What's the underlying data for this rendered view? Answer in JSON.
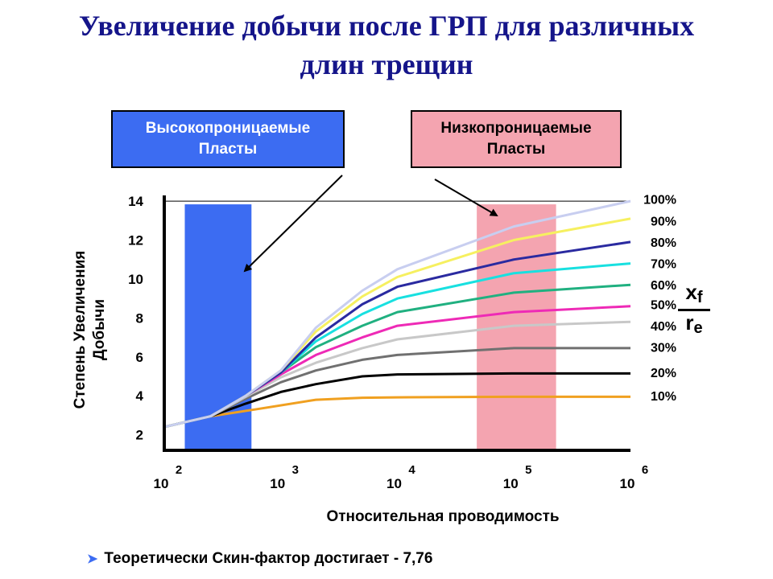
{
  "title": "Увеличение добычи после ГРП для различных\nдлин трещин",
  "box_high": {
    "label": "Высокопроницаемые\nПласты",
    "color": "#3c6cf2"
  },
  "box_low": {
    "label": "Низкопроницаемые\nПласты",
    "color": "#f4a4b0"
  },
  "note": {
    "bullet": "➤",
    "text": "Теоретически Скин-фактор достигает  - 7,76"
  },
  "fraction": {
    "num": "x",
    "num_sub": "f",
    "den": "r",
    "den_sub": "e"
  },
  "chart_data": {
    "type": "line",
    "title": "",
    "xlabel": "Относительная проводимость",
    "ylabel": "Степень Увеличения\nДобычи",
    "x_scale": "log",
    "xlim": [
      100,
      1000000
    ],
    "ylim": [
      1.2,
      14.5
    ],
    "y_ticks": [
      2,
      4,
      6,
      8,
      10,
      12,
      14
    ],
    "x_ticks": [
      {
        "value": 100,
        "base": "10",
        "exp": "2"
      },
      {
        "value": 1000,
        "base": "10",
        "exp": "3"
      },
      {
        "value": 10000,
        "base": "10",
        "exp": "4"
      },
      {
        "value": 100000,
        "base": "10",
        "exp": "5"
      },
      {
        "value": 1000000,
        "base": "10",
        "exp": "6"
      }
    ],
    "hlines": [
      14
    ],
    "bands": [
      {
        "name": "high-permeability",
        "x": [
          150,
          560
        ],
        "color": "#3c6cf2"
      },
      {
        "name": "low-permeability",
        "x": [
          48000,
          230000
        ],
        "color": "#f4a4b0"
      }
    ],
    "series": [
      {
        "name": "10%",
        "color": "#f0a020",
        "x": [
          100,
          250,
          600,
          2000,
          5000,
          10000,
          100000,
          1000000
        ],
        "y": [
          2.4,
          2.95,
          3.3,
          3.8,
          3.9,
          3.92,
          3.95,
          3.95
        ]
      },
      {
        "name": "20%",
        "color": "#000000",
        "x": [
          100,
          250,
          500,
          1000,
          2000,
          5000,
          10000,
          100000,
          1000000
        ],
        "y": [
          2.4,
          2.95,
          3.6,
          4.2,
          4.6,
          5.0,
          5.1,
          5.15,
          5.15
        ]
      },
      {
        "name": "30%",
        "color": "#707070",
        "x": [
          100,
          250,
          500,
          1000,
          2000,
          5000,
          10000,
          100000,
          1000000
        ],
        "y": [
          2.4,
          2.95,
          3.85,
          4.7,
          5.3,
          5.85,
          6.1,
          6.45,
          6.45
        ]
      },
      {
        "name": "40%",
        "color": "#c8c8c8",
        "x": [
          100,
          250,
          500,
          1000,
          2000,
          5000,
          10000,
          100000,
          1000000
        ],
        "y": [
          2.4,
          2.95,
          3.95,
          4.95,
          5.7,
          6.45,
          6.9,
          7.6,
          7.8
        ]
      },
      {
        "name": "50%",
        "color": "#ee2ab6",
        "x": [
          100,
          250,
          500,
          1000,
          2000,
          5000,
          10000,
          100000,
          1000000
        ],
        "y": [
          2.4,
          2.95,
          4.0,
          5.1,
          6.1,
          7.0,
          7.6,
          8.3,
          8.6
        ]
      },
      {
        "name": "60%",
        "color": "#20b080",
        "x": [
          100,
          250,
          500,
          1000,
          2000,
          5000,
          10000,
          100000,
          1000000
        ],
        "y": [
          2.4,
          2.95,
          4.0,
          5.2,
          6.5,
          7.6,
          8.3,
          9.3,
          9.7
        ]
      },
      {
        "name": "70%",
        "color": "#18e0e0",
        "x": [
          100,
          250,
          500,
          1000,
          2000,
          5000,
          10000,
          100000,
          1000000
        ],
        "y": [
          2.4,
          2.95,
          4.0,
          5.2,
          6.8,
          8.2,
          9.0,
          10.3,
          10.8
        ]
      },
      {
        "name": "80%",
        "color": "#2a2aa0",
        "x": [
          100,
          250,
          500,
          1000,
          2000,
          5000,
          10000,
          100000,
          1000000
        ],
        "y": [
          2.4,
          2.95,
          4.0,
          5.2,
          7.0,
          8.7,
          9.6,
          11.0,
          11.9
        ]
      },
      {
        "name": "90%",
        "color": "#f6f060",
        "x": [
          100,
          250,
          500,
          1000,
          2000,
          5000,
          10000,
          100000,
          1000000
        ],
        "y": [
          2.4,
          2.95,
          4.0,
          5.3,
          7.3,
          9.1,
          10.1,
          12.0,
          13.1
        ]
      },
      {
        "name": "100%",
        "color": "#c8cef0",
        "x": [
          100,
          250,
          500,
          1000,
          2000,
          5000,
          10000,
          100000,
          1000000
        ],
        "y": [
          2.4,
          2.95,
          4.0,
          5.3,
          7.5,
          9.4,
          10.5,
          12.7,
          14.0
        ]
      }
    ],
    "series_label_y": [
      4.0,
      5.2,
      6.5,
      7.6,
      8.7,
      9.7,
      10.8,
      11.9,
      13.0,
      14.1
    ]
  }
}
